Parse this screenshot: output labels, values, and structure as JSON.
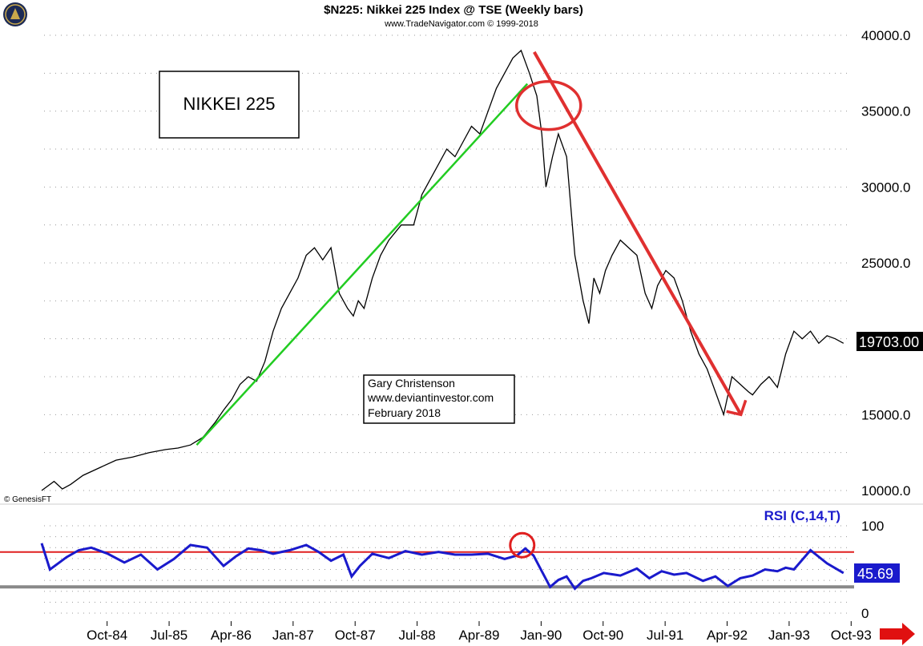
{
  "header": {
    "title": "$N225:  Nikkei 225 Index @ TSE  (Weekly bars)",
    "subtitle": "www.TradeNavigator.com © 1999-2018"
  },
  "credit": "© GenesisFT",
  "annotations": {
    "nikkei_box": "NIKKEI 225",
    "author_lines": [
      "Gary Christenson",
      "www.deviantinvestor.com",
      "February 2018"
    ]
  },
  "colors": {
    "price_line": "#000000",
    "uptrend": "#22cc22",
    "downtrend": "#e03030",
    "rsi_line": "#1a1acc",
    "rsi_upper": "#e02020",
    "rsi_lower": "#888888",
    "last_price_bg": "#000000",
    "last_rsi_bg": "#1a1acc",
    "logo": "#1c2a55"
  },
  "icons": [
    "logo-icon",
    "scroll-right-arrow-icon"
  ],
  "chart_data": [
    {
      "type": "line",
      "name": "price-panel",
      "x_tick_labels": [
        "Oct-84",
        "Jul-85",
        "Apr-86",
        "Jan-87",
        "Oct-87",
        "Jul-88",
        "Apr-89",
        "Jan-90",
        "Oct-90",
        "Jul-91",
        "Apr-92",
        "Jan-93",
        "Oct-93"
      ],
      "y_ticks": [
        "10000.0",
        "15000.0",
        "20000.0",
        "25000.0",
        "30000.0",
        "35000.0",
        "40000.0"
      ],
      "ylim": [
        9800,
        40000
      ],
      "grid": true,
      "last_value_label": "19703.00",
      "series": [
        {
          "values_x": [
            1984.0,
            1984.15,
            1984.25,
            1984.35,
            1984.5,
            1984.7,
            1984.9,
            1985.1,
            1985.3,
            1985.5,
            1985.65,
            1985.8,
            1985.95,
            1986.1,
            1986.2,
            1986.3,
            1986.4,
            1986.5,
            1986.6,
            1986.7,
            1986.8,
            1986.9,
            1987.0,
            1987.1,
            1987.2,
            1987.3,
            1987.4,
            1987.5,
            1987.6,
            1987.7,
            1987.77,
            1987.83,
            1987.9,
            1988.0,
            1988.1,
            1988.2,
            1988.35,
            1988.5,
            1988.6,
            1988.7,
            1988.8,
            1988.9,
            1989.0,
            1989.1,
            1989.2,
            1989.3,
            1989.4,
            1989.5,
            1989.6,
            1989.7,
            1989.8,
            1989.9,
            1989.99,
            1990.05,
            1990.1,
            1990.18,
            1990.25,
            1990.35,
            1990.45,
            1990.55,
            1990.62,
            1990.68,
            1990.75,
            1990.82,
            1990.9,
            1991.0,
            1991.1,
            1991.2,
            1991.3,
            1991.38,
            1991.45,
            1991.55,
            1991.65,
            1991.75,
            1991.85,
            1991.95,
            1992.05,
            1992.15,
            1992.25,
            1992.35,
            1992.45,
            1992.55,
            1992.6,
            1992.7,
            1992.8,
            1992.9,
            1993.0,
            1993.1,
            1993.2,
            1993.3,
            1993.4,
            1993.5,
            1993.6,
            1993.7
          ],
          "values_y": [
            10000,
            10600,
            10100,
            10400,
            11000,
            11500,
            12000,
            12200,
            12500,
            12700,
            12800,
            13000,
            13500,
            14500,
            15300,
            16000,
            17000,
            17500,
            17200,
            18500,
            20500,
            22000,
            23000,
            24000,
            25500,
            26000,
            25200,
            26000,
            23000,
            22000,
            21500,
            22500,
            22000,
            24000,
            25500,
            26500,
            27500,
            27500,
            29500,
            30500,
            31500,
            32500,
            32000,
            33000,
            34000,
            33500,
            35000,
            36500,
            37500,
            38500,
            39000,
            37500,
            36000,
            33500,
            30000,
            32000,
            33500,
            32000,
            25500,
            22500,
            21000,
            24000,
            23000,
            24500,
            25500,
            26500,
            26000,
            25500,
            23000,
            22000,
            23500,
            24500,
            24000,
            22500,
            20500,
            19000,
            18000,
            16500,
            15000,
            17500,
            17000,
            16500,
            16300,
            17000,
            17500,
            16800,
            19000,
            20500,
            20000,
            20500,
            19700,
            20200,
            20000,
            19703
          ]
        }
      ],
      "trendlines": [
        {
          "name": "uptrend",
          "from": [
            "Nov-85",
            13000
          ],
          "to": [
            "Nov-89",
            36800
          ]
        },
        {
          "name": "downtrend",
          "from": [
            "Dec-89",
            38900
          ],
          "to": [
            "Jun-92",
            15000
          ]
        }
      ],
      "circle_highlight": {
        "x": "Dec-89",
        "y": 35000
      }
    },
    {
      "type": "line",
      "name": "rsi-panel",
      "title": "RSI (C,14,T)",
      "y_ticks": [
        "0",
        "100"
      ],
      "ylim": [
        0,
        100
      ],
      "upper_level": 70,
      "lower_level": 30,
      "last_value_label": "45.69",
      "series": [
        {
          "values_x": [
            1984.0,
            1984.1,
            1984.2,
            1984.3,
            1984.45,
            1984.6,
            1984.8,
            1985.0,
            1985.2,
            1985.4,
            1985.6,
            1985.8,
            1986.0,
            1986.2,
            1986.35,
            1986.5,
            1986.65,
            1986.8,
            1987.0,
            1987.2,
            1987.35,
            1987.5,
            1987.65,
            1987.75,
            1987.85,
            1988.0,
            1988.2,
            1988.4,
            1988.6,
            1988.8,
            1989.0,
            1989.2,
            1989.4,
            1989.6,
            1989.75,
            1989.85,
            1989.95,
            1990.05,
            1990.15,
            1990.25,
            1990.35,
            1990.45,
            1990.55,
            1990.65,
            1990.8,
            1991.0,
            1991.2,
            1991.35,
            1991.5,
            1991.65,
            1991.8,
            1992.0,
            1992.15,
            1992.3,
            1992.45,
            1992.6,
            1992.75,
            1992.9,
            1993.0,
            1993.1,
            1993.3,
            1993.5,
            1993.7
          ],
          "values_y": [
            80,
            50,
            57,
            64,
            72,
            75,
            68,
            58,
            67,
            50,
            62,
            78,
            75,
            54,
            65,
            74,
            72,
            68,
            72,
            78,
            70,
            60,
            67,
            42,
            54,
            68,
            63,
            71,
            67,
            70,
            67,
            67,
            68,
            62,
            66,
            74,
            66,
            48,
            30,
            38,
            42,
            28,
            37,
            40,
            46,
            43,
            51,
            40,
            48,
            44,
            46,
            37,
            42,
            31,
            40,
            43,
            50,
            48,
            52,
            50,
            72,
            57,
            46
          ]
        }
      ],
      "circle_highlight": {
        "x": "Dec-89",
        "y": 75
      }
    }
  ]
}
